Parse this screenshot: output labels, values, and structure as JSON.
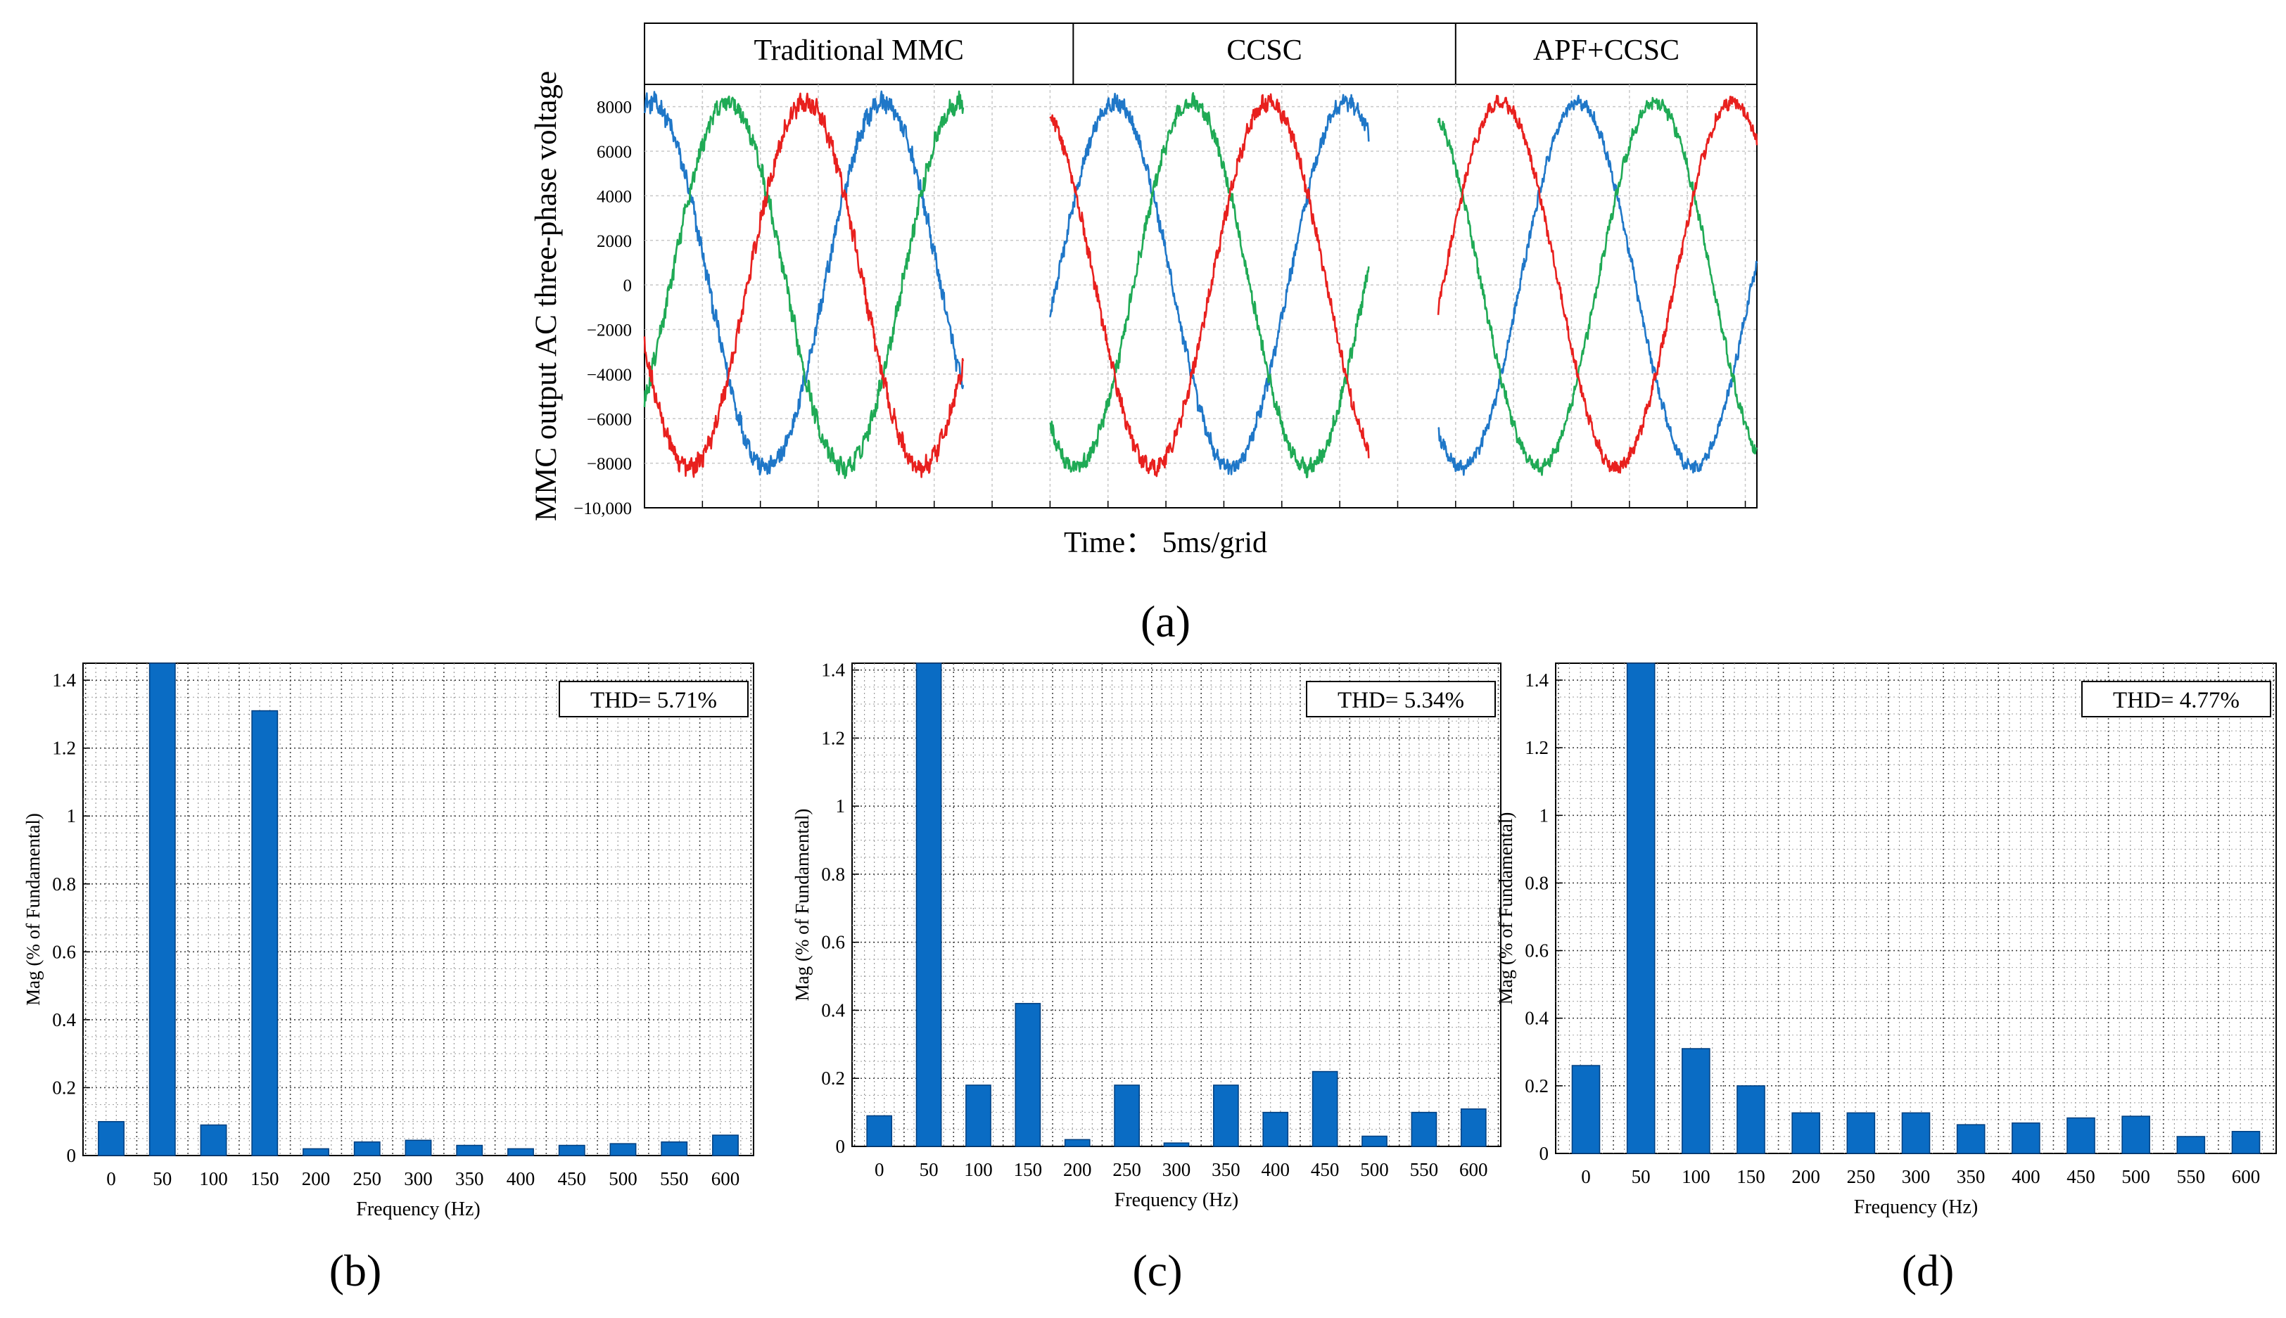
{
  "figure": {
    "panel_labels": [
      "(a)",
      "(b)",
      "(c)",
      "(d)"
    ]
  },
  "chart_data": [
    {
      "id": "a",
      "type": "line",
      "panel_label": "(a)",
      "ylabel": "MMC output AC three-phase voltage",
      "xlabel": "Time： 5ms/grid",
      "ylim": [
        -10000,
        9000
      ],
      "yticks": [
        8000,
        6000,
        4000,
        2000,
        0,
        -2000,
        -4000,
        -6000,
        -8000,
        -10000
      ],
      "ytick_labels": [
        "8000",
        "6000",
        "4000",
        "2000",
        "0",
        "−2000",
        "−4000",
        "−6000",
        "−8000",
        "−10,000"
      ],
      "x_unit": "ms",
      "x_grid_ms": 5,
      "segments": [
        {
          "label": "Traditional MMC",
          "t_start": 0,
          "t_end": 37,
          "trace_start": 0,
          "trace_end": 27.5,
          "phase_offset_deg": 0,
          "noise": 380
        },
        {
          "label": "CCSC",
          "t_start": 37,
          "t_end": 70,
          "trace_start": 35,
          "trace_end": 62.5,
          "phase_offset_deg": 0,
          "noise": 320
        },
        {
          "label": "APF+CCSC",
          "t_start": 70,
          "t_end": 96,
          "trace_start": 68.5,
          "trace_end": 96,
          "phase_offset_deg": 0,
          "noise": 260
        }
      ],
      "series": [
        {
          "name": "Phase blue",
          "color": "#1f77c8",
          "amplitude": 8200,
          "frequency_hz": 50,
          "phase_deg": 80
        },
        {
          "name": "Phase green",
          "color": "#1faa55",
          "amplitude": 8200,
          "frequency_hz": 50,
          "phase_deg": -40
        },
        {
          "name": "Phase red",
          "color": "#e8201e",
          "amplitude": 8200,
          "frequency_hz": 50,
          "phase_deg": 200
        }
      ]
    },
    {
      "id": "b",
      "type": "bar",
      "panel_label": "(b)",
      "annotation": "THD= 5.71%",
      "xlabel": "Frequency (Hz)",
      "ylabel": "Mag (% of Fundamental)",
      "ylim": [
        0,
        1.45
      ],
      "yticks": [
        0,
        0.2,
        0.4,
        0.6,
        0.8,
        1,
        1.2,
        1.4
      ],
      "ytick_labels": [
        "0",
        "0.2",
        "0.4",
        "0.6",
        "0.8",
        "1",
        "1.2",
        "1.4"
      ],
      "categories": [
        "0",
        "50",
        "100",
        "150",
        "200",
        "250",
        "300",
        "350",
        "400",
        "450",
        "500",
        "550",
        "600"
      ],
      "values": [
        0.1,
        1.45,
        0.09,
        1.31,
        0.02,
        0.04,
        0.045,
        0.03,
        0.02,
        0.03,
        0.035,
        0.04,
        0.06
      ],
      "bar_color": "#0a6cc4"
    },
    {
      "id": "c",
      "type": "bar",
      "panel_label": "(c)",
      "annotation": "THD= 5.34%",
      "xlabel": "Frequency (Hz)",
      "ylabel": "Mag (% of Fundamental)",
      "ylim": [
        0,
        1.42
      ],
      "yticks": [
        0,
        0.2,
        0.4,
        0.6,
        0.8,
        1,
        1.2,
        1.4
      ],
      "ytick_labels": [
        "0",
        "0.2",
        "0.4",
        "0.6",
        "0.8",
        "1",
        "1.2",
        "1.4"
      ],
      "categories": [
        "0",
        "50",
        "100",
        "150",
        "200",
        "250",
        "300",
        "350",
        "400",
        "450",
        "500",
        "550",
        "600"
      ],
      "values": [
        0.09,
        1.42,
        0.18,
        0.42,
        0.02,
        0.18,
        0.01,
        0.18,
        0.1,
        0.22,
        0.03,
        0.1,
        0.11
      ],
      "bar_color": "#0a6cc4"
    },
    {
      "id": "d",
      "type": "bar",
      "panel_label": "(d)",
      "annotation": "THD= 4.77%",
      "xlabel": "Frequency (Hz)",
      "ylabel": "Mag (% of Fundamental)",
      "ylim": [
        0,
        1.45
      ],
      "yticks": [
        0,
        0.2,
        0.4,
        0.6,
        0.8,
        1,
        1.2,
        1.4
      ],
      "ytick_labels": [
        "0",
        "0.2",
        "0.4",
        "0.6",
        "0.8",
        "1",
        "1.2",
        "1.4"
      ],
      "categories": [
        "0",
        "50",
        "100",
        "150",
        "200",
        "250",
        "300",
        "350",
        "400",
        "450",
        "500",
        "550",
        "600"
      ],
      "values": [
        0.26,
        1.45,
        0.31,
        0.2,
        0.12,
        0.12,
        0.12,
        0.085,
        0.09,
        0.105,
        0.11,
        0.05,
        0.065
      ],
      "bar_color": "#0a6cc4"
    }
  ]
}
